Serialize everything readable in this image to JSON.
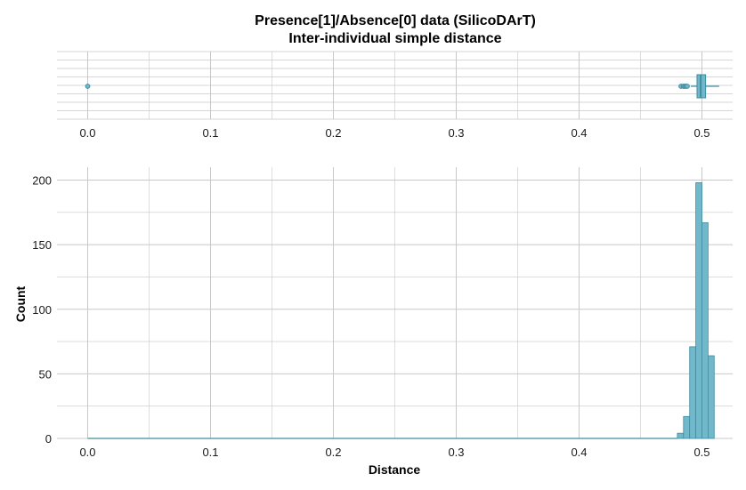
{
  "chart_data": {
    "title": "Presence[1]/Absence[0] data (SilicoDArT)",
    "subtitle": "Inter-individual simple distance",
    "panels": [
      {
        "type": "boxplot",
        "xlim": [
          -0.025,
          0.525
        ],
        "x_ticks": [
          0.0,
          0.1,
          0.2,
          0.3,
          0.4,
          0.5
        ],
        "x_tick_labels": [
          "0.0",
          "0.1",
          "0.2",
          "0.3",
          "0.4",
          "0.5"
        ],
        "stats": {
          "whisker_low": 0.491,
          "q1": 0.496,
          "median": 0.499,
          "q3": 0.503,
          "whisker_high": 0.514
        },
        "outliers": [
          0.0,
          0.483,
          0.485,
          0.486,
          0.487,
          0.488
        ],
        "grid": true
      },
      {
        "type": "bar",
        "xlabel": "Distance",
        "ylabel": "Count",
        "xlim": [
          -0.025,
          0.525
        ],
        "ylim": [
          0,
          210
        ],
        "x_ticks": [
          0.0,
          0.1,
          0.2,
          0.3,
          0.4,
          0.5
        ],
        "x_tick_labels": [
          "0.0",
          "0.1",
          "0.2",
          "0.3",
          "0.4",
          "0.5"
        ],
        "y_ticks": [
          0,
          50,
          100,
          150,
          200
        ],
        "y_tick_labels": [
          "0",
          "50",
          "100",
          "150",
          "200"
        ],
        "bin_width": 0.005,
        "bins": [
          {
            "x": 0.4825,
            "count": 4
          },
          {
            "x": 0.4875,
            "count": 17
          },
          {
            "x": 0.4925,
            "count": 71
          },
          {
            "x": 0.4975,
            "count": 198
          },
          {
            "x": 0.5025,
            "count": 167
          },
          {
            "x": 0.5075,
            "count": 64
          }
        ],
        "grid": true
      }
    ],
    "colors": {
      "fill": "#70B8CA",
      "stroke": "#3E8DA0",
      "grid": "#C8C8C8",
      "baseline": "#3E8DA0"
    }
  }
}
